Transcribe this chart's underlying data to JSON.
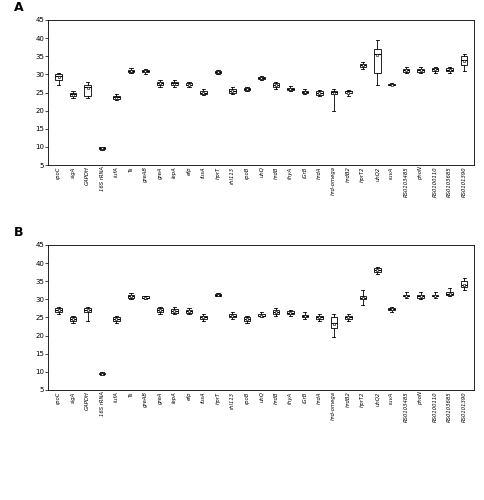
{
  "genes": [
    "rpoC",
    "sigA",
    "GAPDH",
    "16S rRNA",
    "tufA",
    "Ts",
    "greAB",
    "greA",
    "lepA",
    "efp",
    "fusA",
    "hprT",
    "rhl113",
    "rpoB",
    "uhQ",
    "hrdB",
    "thyA",
    "iGrB",
    "hrdA",
    "hrd-omega",
    "hrdB2",
    "hprT2",
    "uhQ2",
    "ruvA",
    "RS0103485",
    "phoN",
    "RS0100110",
    "RS0103685",
    "RS0101390"
  ],
  "panel_A": {
    "whislo": [
      27.0,
      23.5,
      23.5,
      9.3,
      23.0,
      30.5,
      30.0,
      26.5,
      26.5,
      26.5,
      24.2,
      30.2,
      24.5,
      25.5,
      28.5,
      26.0,
      25.5,
      24.5,
      24.0,
      20.0,
      24.0,
      31.5,
      27.0,
      27.0,
      30.5,
      30.5,
      30.5,
      30.5,
      31.0
    ],
    "q1": [
      28.5,
      24.0,
      24.0,
      9.4,
      23.2,
      30.8,
      30.6,
      27.0,
      27.0,
      27.0,
      24.5,
      30.5,
      25.0,
      25.8,
      28.7,
      26.5,
      25.7,
      24.8,
      24.2,
      24.5,
      24.8,
      32.0,
      30.5,
      27.1,
      30.8,
      30.8,
      31.0,
      31.0,
      32.5
    ],
    "median": [
      29.5,
      24.5,
      26.5,
      9.7,
      23.7,
      31.0,
      31.0,
      27.5,
      27.5,
      27.0,
      25.0,
      30.8,
      25.5,
      26.0,
      29.0,
      27.0,
      26.0,
      25.2,
      25.0,
      25.2,
      25.3,
      32.5,
      35.5,
      27.2,
      31.2,
      31.2,
      31.5,
      31.3,
      34.0
    ],
    "mean": [
      29.3,
      24.4,
      26.3,
      9.6,
      23.6,
      31.0,
      31.0,
      27.5,
      27.4,
      27.0,
      25.0,
      30.8,
      25.4,
      26.0,
      29.0,
      27.0,
      26.0,
      25.2,
      25.0,
      25.0,
      25.0,
      32.5,
      35.3,
      27.2,
      31.2,
      31.2,
      31.5,
      31.3,
      33.8
    ],
    "q3": [
      30.0,
      25.0,
      27.0,
      9.9,
      24.0,
      31.3,
      31.3,
      28.0,
      28.0,
      27.5,
      25.5,
      31.0,
      26.0,
      26.3,
      29.3,
      27.5,
      26.3,
      25.5,
      25.3,
      25.5,
      25.5,
      33.0,
      37.0,
      27.4,
      31.5,
      31.5,
      31.7,
      31.7,
      35.0
    ],
    "whishi": [
      30.5,
      25.5,
      28.0,
      10.0,
      24.5,
      31.8,
      31.5,
      28.5,
      28.5,
      28.0,
      26.0,
      31.3,
      26.5,
      26.5,
      29.5,
      28.0,
      26.8,
      26.0,
      25.8,
      26.0,
      25.8,
      33.5,
      39.5,
      27.5,
      32.0,
      32.0,
      32.0,
      32.0,
      35.5
    ]
  },
  "panel_B": {
    "whislo": [
      26.0,
      23.5,
      24.0,
      9.0,
      23.5,
      30.0,
      30.0,
      26.0,
      26.0,
      26.0,
      24.0,
      30.8,
      24.5,
      23.5,
      25.0,
      25.5,
      25.5,
      24.5,
      24.0,
      19.5,
      24.0,
      28.5,
      37.0,
      26.5,
      30.5,
      30.0,
      30.5,
      31.0,
      32.5
    ],
    "q1": [
      26.5,
      24.0,
      26.5,
      9.3,
      24.0,
      30.5,
      30.3,
      26.5,
      26.3,
      26.3,
      24.5,
      31.0,
      25.0,
      24.0,
      25.3,
      26.0,
      26.0,
      25.0,
      24.5,
      22.0,
      24.5,
      30.0,
      37.5,
      27.0,
      30.8,
      30.5,
      30.8,
      31.3,
      33.5
    ],
    "median": [
      27.0,
      24.5,
      27.0,
      9.5,
      24.5,
      31.0,
      30.5,
      27.0,
      26.8,
      26.7,
      25.0,
      31.2,
      25.5,
      24.5,
      25.5,
      26.5,
      26.3,
      25.3,
      25.0,
      23.5,
      25.0,
      30.5,
      38.0,
      27.2,
      31.0,
      31.0,
      31.0,
      31.5,
      34.0
    ],
    "mean": [
      27.0,
      24.5,
      27.0,
      9.5,
      24.5,
      31.0,
      30.5,
      27.0,
      26.8,
      26.7,
      25.0,
      31.2,
      25.3,
      24.5,
      25.5,
      26.5,
      26.3,
      25.3,
      25.0,
      23.3,
      25.0,
      30.5,
      38.0,
      27.2,
      31.0,
      31.0,
      31.0,
      31.5,
      34.0
    ],
    "q3": [
      27.5,
      25.0,
      27.5,
      9.7,
      25.0,
      31.3,
      30.8,
      27.5,
      27.3,
      27.0,
      25.5,
      31.5,
      26.0,
      25.0,
      26.0,
      27.0,
      26.8,
      25.8,
      25.5,
      25.0,
      25.5,
      31.0,
      38.5,
      27.5,
      31.3,
      31.3,
      31.3,
      32.0,
      35.0
    ],
    "whishi": [
      28.0,
      25.5,
      28.0,
      10.0,
      25.5,
      31.8,
      31.0,
      28.0,
      27.8,
      27.5,
      26.0,
      31.8,
      26.5,
      25.5,
      26.5,
      27.5,
      27.0,
      26.5,
      26.0,
      26.0,
      26.0,
      32.5,
      39.0,
      28.0,
      32.0,
      32.0,
      32.0,
      33.0,
      36.0
    ]
  },
  "ylim": [
    5,
    45
  ],
  "yticks": [
    5,
    10,
    15,
    20,
    25,
    30,
    35,
    40,
    45
  ],
  "panel_label_A": "A",
  "panel_label_B": "B"
}
